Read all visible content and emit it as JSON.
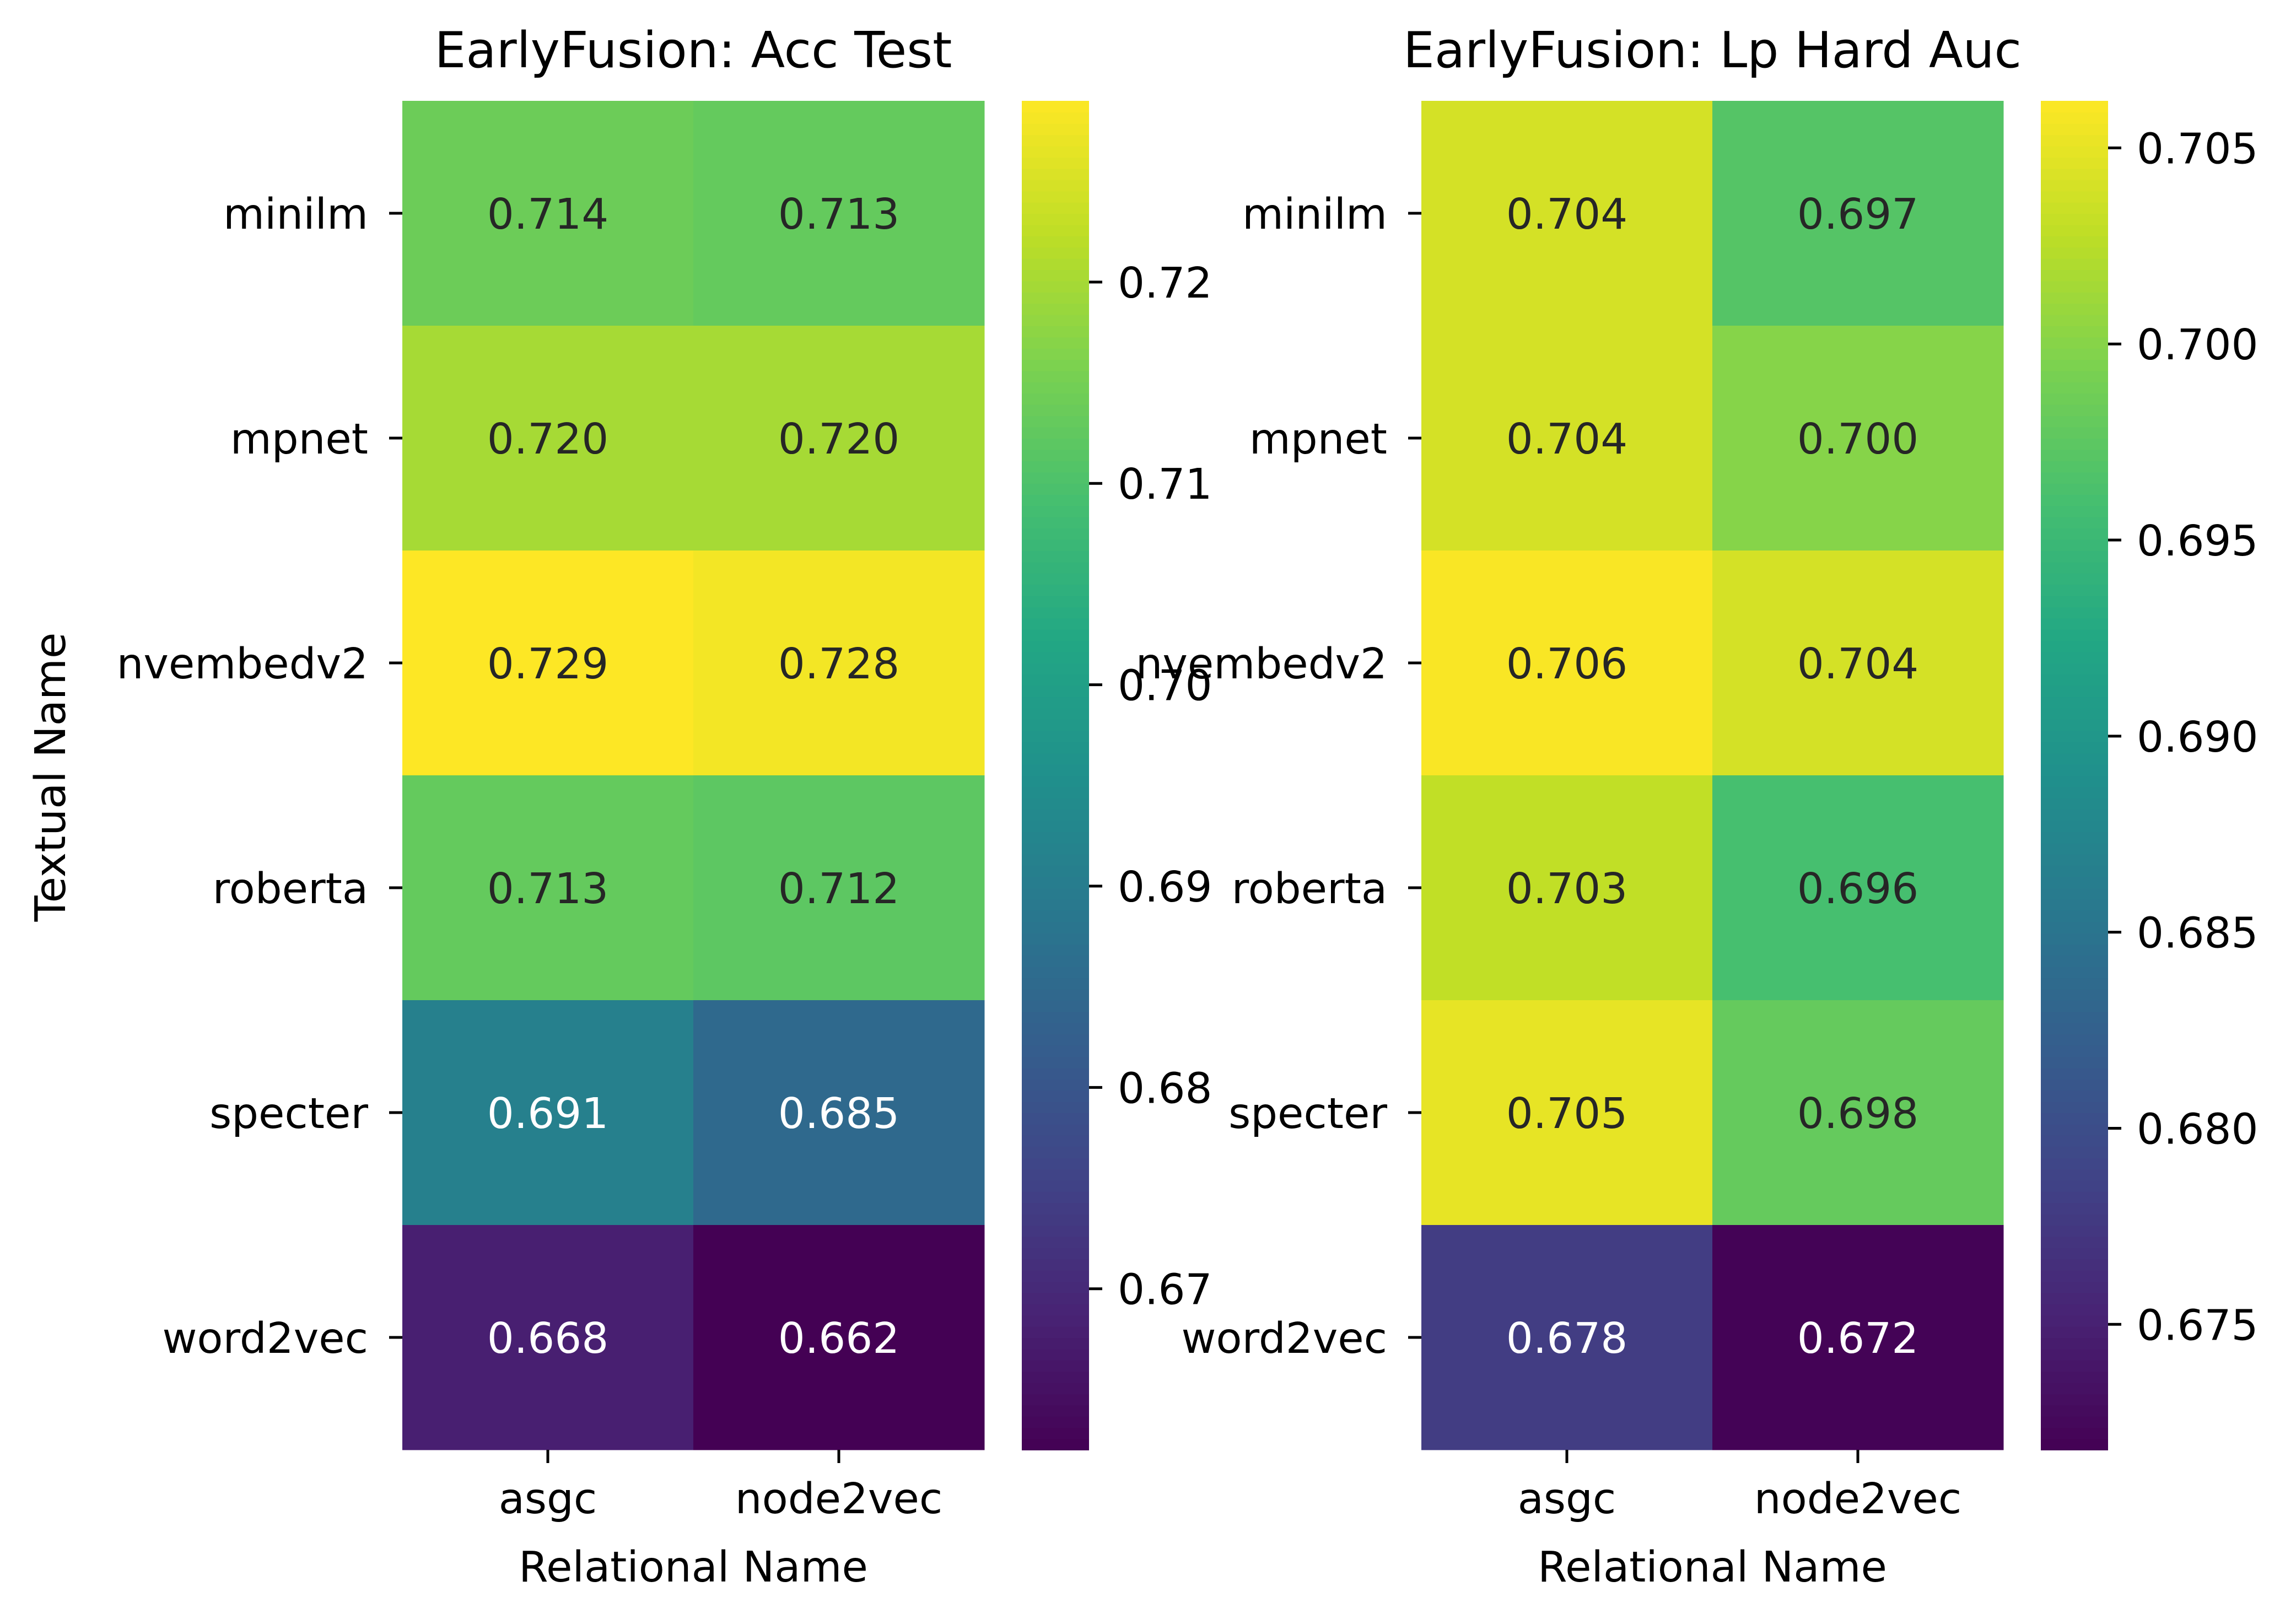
{
  "chart_data": [
    {
      "type": "heatmap",
      "title": "EarlyFusion: Acc Test",
      "xlabel": "Relational Name",
      "ylabel": "Textual Name",
      "x_categories": [
        "asgc",
        "node2vec"
      ],
      "y_categories": [
        "minilm",
        "mpnet",
        "nvembedv2",
        "roberta",
        "specter",
        "word2vec"
      ],
      "values": [
        [
          0.714,
          0.713
        ],
        [
          0.72,
          0.72
        ],
        [
          0.729,
          0.728
        ],
        [
          0.713,
          0.712
        ],
        [
          0.691,
          0.685
        ],
        [
          0.668,
          0.662
        ]
      ],
      "value_labels": [
        [
          "0.714",
          "0.713"
        ],
        [
          "0.720",
          "0.720"
        ],
        [
          "0.729",
          "0.728"
        ],
        [
          "0.713",
          "0.712"
        ],
        [
          "0.691",
          "0.685"
        ],
        [
          "0.668",
          "0.662"
        ]
      ],
      "colormap": "viridis",
      "vmin": 0.662,
      "vmax": 0.729,
      "colorbar_ticks": [
        0.67,
        0.68,
        0.69,
        0.7,
        0.71,
        0.72
      ],
      "colorbar_tick_labels": [
        "0.67",
        "0.68",
        "0.69",
        "0.70",
        "0.71",
        "0.72"
      ]
    },
    {
      "type": "heatmap",
      "title": "EarlyFusion: Lp Hard Auc",
      "xlabel": "Relational Name",
      "ylabel": "",
      "x_categories": [
        "asgc",
        "node2vec"
      ],
      "y_categories": [
        "minilm",
        "mpnet",
        "nvembedv2",
        "roberta",
        "specter",
        "word2vec"
      ],
      "values": [
        [
          0.704,
          0.697
        ],
        [
          0.704,
          0.7
        ],
        [
          0.706,
          0.704
        ],
        [
          0.703,
          0.696
        ],
        [
          0.705,
          0.698
        ],
        [
          0.678,
          0.672
        ]
      ],
      "value_labels": [
        [
          "0.704",
          "0.697"
        ],
        [
          "0.704",
          "0.700"
        ],
        [
          "0.706",
          "0.704"
        ],
        [
          "0.703",
          "0.696"
        ],
        [
          "0.705",
          "0.698"
        ],
        [
          "0.678",
          "0.672"
        ]
      ],
      "colormap": "viridis",
      "vmin": 0.6718,
      "vmax": 0.7062,
      "colorbar_ticks": [
        0.675,
        0.68,
        0.685,
        0.69,
        0.695,
        0.7,
        0.705
      ],
      "colorbar_tick_labels": [
        "0.675",
        "0.680",
        "0.685",
        "0.690",
        "0.695",
        "0.700",
        "0.705"
      ]
    }
  ]
}
